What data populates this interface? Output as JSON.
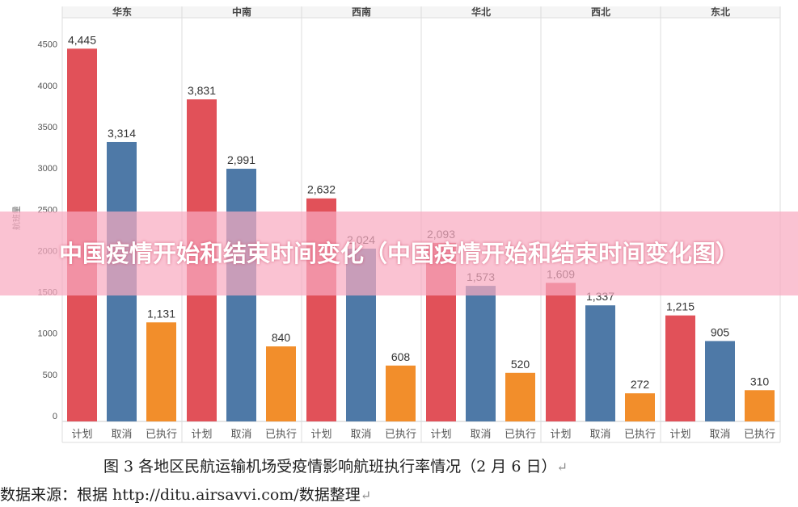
{
  "banner": {
    "title": "中国疫情开始和结束时间变化（中国疫情开始和结束时间变化图）"
  },
  "caption": "图 3 各地区民航运输机场受疫情影响航班执行率情况（2 月 6 日）",
  "source": "数据来源：根据 http://ditu.airsavvi.com/数据整理",
  "return_mark": "↵",
  "colors": {
    "计划": "#e15159",
    "取消": "#4e79a7",
    "已执行": "#f28e2b"
  },
  "chart_data": {
    "type": "bar",
    "ylabel": "航班量",
    "ylim": [
      0,
      5000
    ],
    "yticks": [
      "0",
      "500",
      "1000",
      "1500",
      "2000",
      "2500",
      "3000",
      "3500",
      "4000",
      "4500"
    ],
    "grid": false,
    "panels": [
      {
        "region": "华东",
        "categories": [
          "计划",
          "取消",
          "已执行"
        ],
        "values": [
          4445,
          3314,
          1131
        ],
        "labels": [
          "4,445",
          "3,314",
          "1,131"
        ]
      },
      {
        "region": "中南",
        "categories": [
          "计划",
          "取消",
          "已执行"
        ],
        "values": [
          3831,
          2991,
          840
        ],
        "labels": [
          "3,831",
          "2,991",
          "840"
        ]
      },
      {
        "region": "西南",
        "categories": [
          "计划",
          "取消",
          "已执行"
        ],
        "values": [
          2632,
          2024,
          608
        ],
        "labels": [
          "2,632",
          "2,024",
          "608"
        ]
      },
      {
        "region": "华北",
        "categories": [
          "计划",
          "取消",
          "已执行"
        ],
        "values": [
          2093,
          1573,
          520
        ],
        "labels": [
          "2,093",
          "1,573",
          "520"
        ]
      },
      {
        "region": "西北",
        "categories": [
          "计划",
          "取消",
          "已执行"
        ],
        "values": [
          1609,
          1337,
          272
        ],
        "labels": [
          "1,609",
          "1,337",
          "272"
        ]
      },
      {
        "region": "东北",
        "categories": [
          "计划",
          "取消",
          "已执行"
        ],
        "values": [
          1215,
          905,
          310
        ],
        "labels": [
          "1,215",
          "905",
          "310"
        ]
      }
    ]
  }
}
